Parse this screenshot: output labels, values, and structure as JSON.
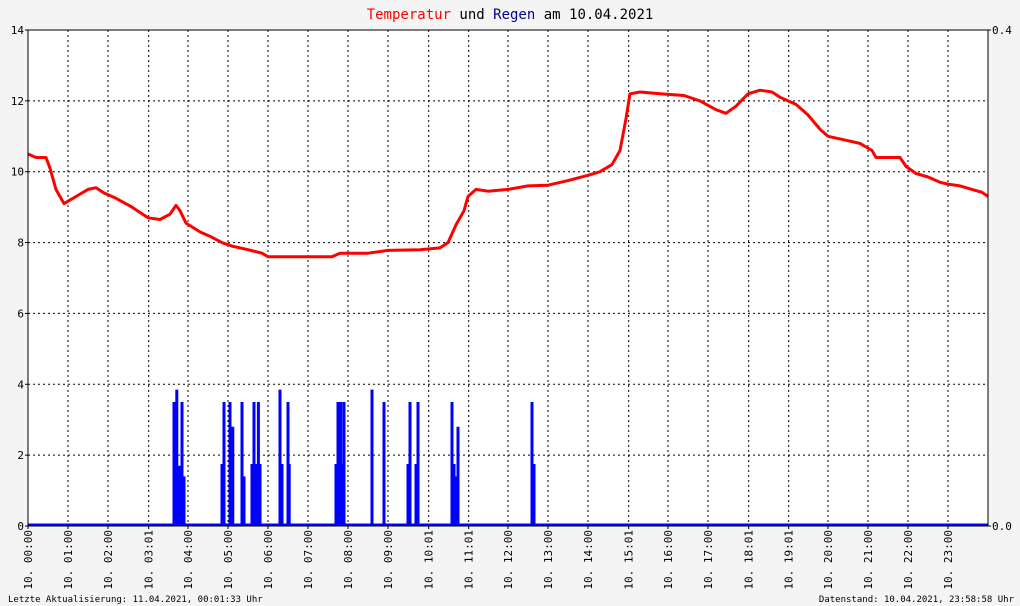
{
  "chart_data": {
    "type": "line",
    "title": {
      "part1": "Temperatur",
      "part2": " und ",
      "part3": "Regen",
      "part4": " am 10.04.2021"
    },
    "colors": {
      "temperature": "#ff0000",
      "rain": "#0000ff",
      "title_text": "#000000",
      "grid": "#000000"
    },
    "y_left": {
      "lim": [
        0,
        14
      ],
      "ticks": [
        0,
        2,
        4,
        6,
        8,
        10,
        12,
        14
      ]
    },
    "y_right": {
      "lim": [
        0,
        0.4
      ],
      "ticks": [
        "0.0",
        "0.4"
      ]
    },
    "x": {
      "lim": [
        0,
        24
      ],
      "tick_hours": [
        0.0,
        1.0,
        2.0,
        3.017,
        4.0,
        5.0,
        6.0,
        7.0,
        8.0,
        9.0,
        10.017,
        11.017,
        12.0,
        13.0,
        14.0,
        15.017,
        16.0,
        17.0,
        18.017,
        19.017,
        20.0,
        21.0,
        22.0,
        23.0
      ],
      "tick_labels": [
        "10. 00:00",
        "10. 01:00",
        "10. 02:00",
        "10. 03:01",
        "10. 04:00",
        "10. 05:00",
        "10. 06:00",
        "10. 07:00",
        "10. 08:00",
        "10. 09:00",
        "10. 10:01",
        "10. 11:01",
        "10. 12:00",
        "10. 13:00",
        "10. 14:00",
        "10. 15:01",
        "10. 16:00",
        "10. 17:00",
        "10. 18:01",
        "10. 19:01",
        "10. 20:00",
        "10. 21:00",
        "10. 22:00",
        "10. 23:00"
      ]
    },
    "grid": true,
    "series": [
      {
        "type": "line",
        "color": "#ff0000",
        "points": [
          [
            0,
            10.5
          ],
          [
            0.2,
            10.4
          ],
          [
            0.45,
            10.4
          ],
          [
            0.55,
            10.1
          ],
          [
            0.7,
            9.5
          ],
          [
            0.9,
            9.1
          ],
          [
            1.2,
            9.3
          ],
          [
            1.5,
            9.5
          ],
          [
            1.7,
            9.55
          ],
          [
            1.9,
            9.4
          ],
          [
            2.2,
            9.25
          ],
          [
            2.6,
            9.0
          ],
          [
            2.8,
            8.85
          ],
          [
            3.0,
            8.7
          ],
          [
            3.3,
            8.65
          ],
          [
            3.55,
            8.8
          ],
          [
            3.7,
            9.05
          ],
          [
            3.8,
            8.9
          ],
          [
            3.95,
            8.55
          ],
          [
            4.3,
            8.3
          ],
          [
            4.6,
            8.15
          ],
          [
            4.85,
            8.0
          ],
          [
            5.1,
            7.9
          ],
          [
            5.5,
            7.8
          ],
          [
            5.85,
            7.7
          ],
          [
            6.0,
            7.6
          ],
          [
            7.0,
            7.6
          ],
          [
            7.6,
            7.6
          ],
          [
            7.8,
            7.7
          ],
          [
            8.5,
            7.7
          ],
          [
            9.0,
            7.78
          ],
          [
            9.8,
            7.8
          ],
          [
            10.3,
            7.85
          ],
          [
            10.5,
            8.0
          ],
          [
            10.7,
            8.5
          ],
          [
            10.9,
            8.9
          ],
          [
            11.0,
            9.3
          ],
          [
            11.2,
            9.5
          ],
          [
            11.5,
            9.45
          ],
          [
            12.0,
            9.5
          ],
          [
            12.5,
            9.6
          ],
          [
            13.0,
            9.62
          ],
          [
            13.5,
            9.75
          ],
          [
            14.0,
            9.9
          ],
          [
            14.3,
            10.0
          ],
          [
            14.6,
            10.2
          ],
          [
            14.8,
            10.6
          ],
          [
            14.95,
            11.5
          ],
          [
            15.05,
            12.2
          ],
          [
            15.3,
            12.25
          ],
          [
            15.8,
            12.2
          ],
          [
            16.4,
            12.15
          ],
          [
            16.8,
            12.0
          ],
          [
            17.2,
            11.75
          ],
          [
            17.45,
            11.65
          ],
          [
            17.7,
            11.85
          ],
          [
            18.0,
            12.2
          ],
          [
            18.3,
            12.3
          ],
          [
            18.6,
            12.25
          ],
          [
            18.8,
            12.1
          ],
          [
            19.2,
            11.9
          ],
          [
            19.5,
            11.6
          ],
          [
            19.8,
            11.2
          ],
          [
            20.0,
            11.0
          ],
          [
            20.4,
            10.9
          ],
          [
            20.8,
            10.8
          ],
          [
            21.1,
            10.6
          ],
          [
            21.2,
            10.4
          ],
          [
            21.8,
            10.4
          ],
          [
            21.95,
            10.15
          ],
          [
            22.2,
            9.95
          ],
          [
            22.5,
            9.85
          ],
          [
            22.8,
            9.7
          ],
          [
            23.0,
            9.65
          ],
          [
            23.3,
            9.6
          ],
          [
            23.6,
            9.5
          ],
          [
            23.85,
            9.42
          ],
          [
            24.0,
            9.3
          ]
        ]
      },
      {
        "type": "bar",
        "color": "#0000ff",
        "bars": [
          [
            3.65,
            3.5
          ],
          [
            3.72,
            3.85
          ],
          [
            3.78,
            1.7
          ],
          [
            3.85,
            3.5
          ],
          [
            3.9,
            1.4
          ],
          [
            4.85,
            1.75
          ],
          [
            4.9,
            3.5
          ],
          [
            5.05,
            3.5
          ],
          [
            5.1,
            1.4
          ],
          [
            5.12,
            2.8
          ],
          [
            5.35,
            3.5
          ],
          [
            5.4,
            1.4
          ],
          [
            5.6,
            1.75
          ],
          [
            5.65,
            3.5
          ],
          [
            5.72,
            1.75
          ],
          [
            5.76,
            3.5
          ],
          [
            5.8,
            1.75
          ],
          [
            6.3,
            3.85
          ],
          [
            6.35,
            1.75
          ],
          [
            6.5,
            3.5
          ],
          [
            6.53,
            1.75
          ],
          [
            7.7,
            1.75
          ],
          [
            7.75,
            3.5
          ],
          [
            7.82,
            3.5
          ],
          [
            7.85,
            1.75
          ],
          [
            7.9,
            3.5
          ],
          [
            8.6,
            3.85
          ],
          [
            8.9,
            3.5
          ],
          [
            9.5,
            1.75
          ],
          [
            9.55,
            3.5
          ],
          [
            9.7,
            1.75
          ],
          [
            9.75,
            3.5
          ],
          [
            10.6,
            3.5
          ],
          [
            10.65,
            1.75
          ],
          [
            10.7,
            1.4
          ],
          [
            10.75,
            2.8
          ],
          [
            12.6,
            3.5
          ],
          [
            12.65,
            1.75
          ]
        ]
      }
    ]
  },
  "footer": {
    "left": "Letzte Aktualisierung: 11.04.2021, 00:01:33 Uhr",
    "right": "Datenstand: 10.04.2021, 23:58:58 Uhr"
  }
}
